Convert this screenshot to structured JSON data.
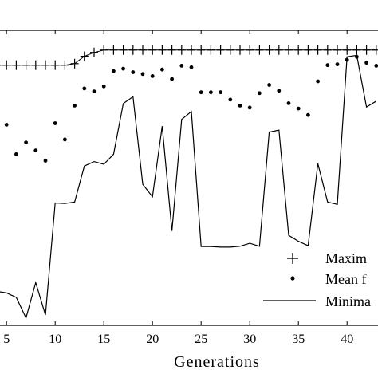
{
  "chart_data": {
    "type": "line",
    "xlabel": "Generations",
    "xlim": [
      4,
      44
    ],
    "ylim": [
      0,
      1
    ],
    "x_ticks": [
      5,
      10,
      15,
      20,
      25,
      30,
      35,
      40
    ],
    "x_tick_labels": [
      "5",
      "10",
      "15",
      "20",
      "25",
      "30",
      "35",
      "40"
    ],
    "grid": false,
    "legend_position": "bottom-right",
    "series": [
      {
        "name": "Maxim",
        "marker": "+",
        "x": [
          4,
          5,
          6,
          7,
          8,
          9,
          10,
          11,
          12,
          13,
          14,
          15,
          16,
          17,
          18,
          19,
          20,
          21,
          22,
          23,
          24,
          25,
          26,
          27,
          28,
          29,
          30,
          31,
          32,
          33,
          34,
          35,
          36,
          37,
          38,
          39,
          40,
          41,
          42,
          43
        ],
        "y": [
          0.882,
          0.882,
          0.882,
          0.882,
          0.882,
          0.882,
          0.882,
          0.882,
          0.887,
          0.912,
          0.925,
          0.933,
          0.933,
          0.933,
          0.933,
          0.933,
          0.933,
          0.933,
          0.933,
          0.933,
          0.933,
          0.933,
          0.933,
          0.933,
          0.933,
          0.933,
          0.933,
          0.933,
          0.933,
          0.933,
          0.933,
          0.933,
          0.933,
          0.933,
          0.933,
          0.933,
          0.933,
          0.933,
          0.933,
          0.933
        ]
      },
      {
        "name": "Mean f",
        "marker": "dot",
        "x": [
          4,
          5,
          6,
          7,
          8,
          9,
          10,
          11,
          12,
          13,
          14,
          15,
          16,
          17,
          18,
          19,
          20,
          21,
          22,
          23,
          24,
          25,
          26,
          27,
          28,
          29,
          30,
          31,
          32,
          33,
          34,
          35,
          36,
          37,
          38,
          39,
          40,
          41,
          42,
          43
        ],
        "y": [
          0.7,
          0.68,
          0.58,
          0.62,
          0.593,
          0.558,
          0.685,
          0.63,
          0.745,
          0.803,
          0.793,
          0.81,
          0.862,
          0.87,
          0.858,
          0.852,
          0.845,
          0.867,
          0.835,
          0.88,
          0.875,
          0.79,
          0.79,
          0.79,
          0.765,
          0.745,
          0.738,
          0.787,
          0.815,
          0.795,
          0.753,
          0.735,
          0.713,
          0.827,
          0.882,
          0.885,
          0.9,
          0.91,
          0.89,
          0.88
        ]
      },
      {
        "name": "Minima",
        "marker": "line",
        "x": [
          4,
          5,
          6,
          7,
          8,
          9,
          10,
          11,
          12,
          13,
          14,
          15,
          16,
          17,
          18,
          19,
          20,
          21,
          22,
          23,
          24,
          25,
          26,
          27,
          28,
          29,
          30,
          31,
          32,
          33,
          34,
          35,
          36,
          37,
          38,
          39,
          40,
          41,
          42,
          43
        ],
        "y": [
          0.115,
          0.11,
          0.095,
          0.025,
          0.145,
          0.035,
          0.415,
          0.413,
          0.418,
          0.54,
          0.555,
          0.546,
          0.58,
          0.752,
          0.775,
          0.478,
          0.436,
          0.675,
          0.32,
          0.698,
          0.725,
          0.267,
          0.267,
          0.265,
          0.265,
          0.268,
          0.278,
          0.268,
          0.655,
          0.662,
          0.305,
          0.285,
          0.27,
          0.548,
          0.418,
          0.41,
          0.91,
          0.915,
          0.74,
          0.76
        ]
      }
    ]
  }
}
